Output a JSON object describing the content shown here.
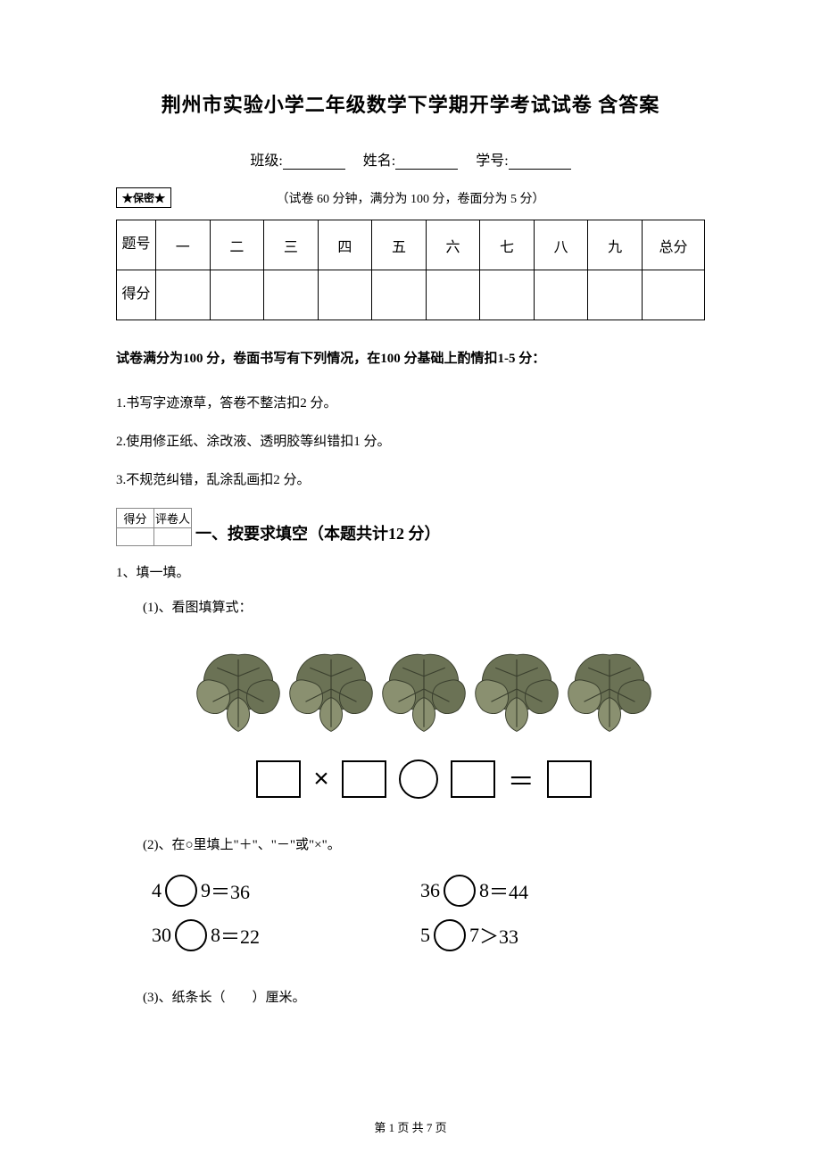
{
  "title": "荆州市实验小学二年级数学下学期开学考试试卷 含答案",
  "blanks": {
    "class_label": "班级:",
    "name_label": "姓名:",
    "id_label": "学号:"
  },
  "secret": "★保密★",
  "meta": "（试卷 60 分钟，满分为 100 分，卷面分为 5 分）",
  "score_table": {
    "row1_label": "题号",
    "row2_label": "得分",
    "cols": [
      "一",
      "二",
      "三",
      "四",
      "五",
      "六",
      "七",
      "八",
      "九",
      "总分"
    ]
  },
  "intro": "试卷满分为100 分，卷面书写有下列情况，在100 分基础上酌情扣1-5 分：",
  "rules": [
    "1.书写字迹潦草，答卷不整洁扣2 分。",
    "2.使用修正纸、涂改液、透明胶等纠错扣1 分。",
    "3.不规范纠错，乱涂乱画扣2 分。"
  ],
  "minibox": {
    "c1": "得分",
    "c2": "评卷人"
  },
  "section1_title": "一、按要求填空（本题共计12 分）",
  "q1": "1、填一填。",
  "q1_1": "(1)、看图填算式：",
  "q1_2": "(2)、在○里填上\"＋\"、\"－\"或\"×\"。",
  "q1_3": "(3)、纸条长（　　）厘米。",
  "eqs": {
    "l1": {
      "a": "4",
      "b": "9",
      "eq": "＝36"
    },
    "l2": {
      "a": "30",
      "b": "8",
      "eq": "＝22"
    },
    "r1": {
      "a": "36",
      "b": "8",
      "eq": "＝44"
    },
    "r2": {
      "a": "5",
      "b": "7",
      "eq": "＞33"
    }
  },
  "leaves": {
    "count": 5,
    "fill": "#6b7255",
    "fill2": "#8a9070",
    "stroke": "#3a3f2e"
  },
  "formula": {
    "mult": "×",
    "equals": "＝"
  },
  "footer": "第 1 页 共 7 页"
}
